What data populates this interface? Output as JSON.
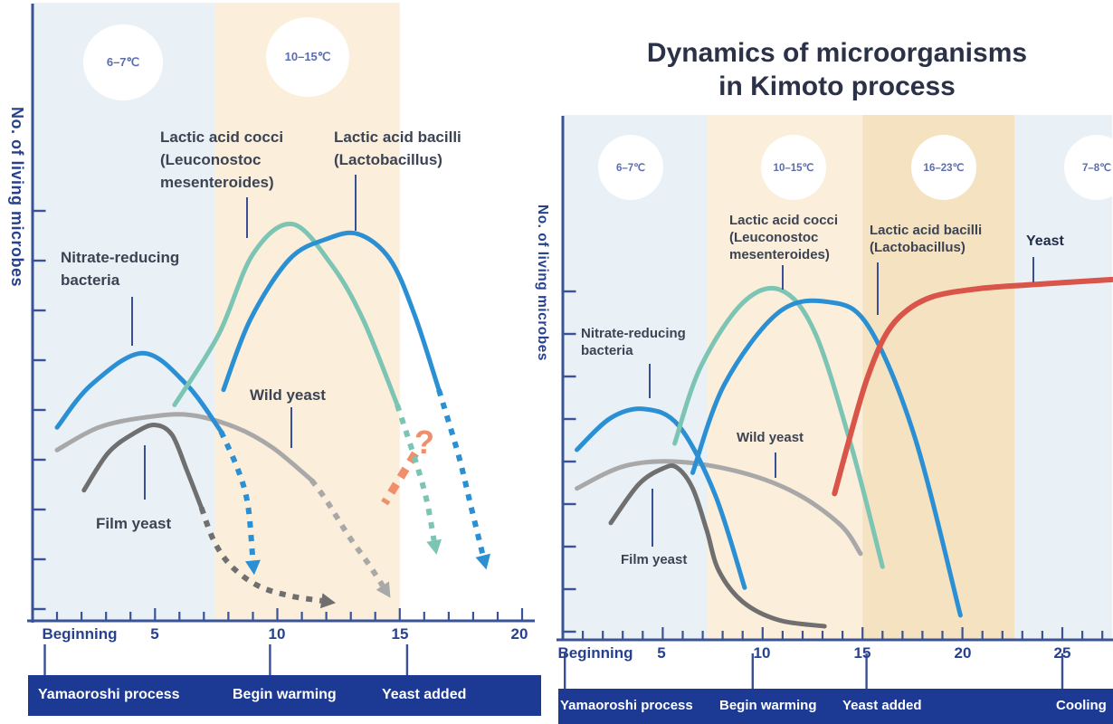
{
  "title": {
    "line1": "Dynamics of microorganisms",
    "line2": "in Kimoto process"
  },
  "colors": {
    "curve_blue": "#2b8fd4",
    "curve_teal": "#7cc4b3",
    "curve_gray_light": "#a8a8a8",
    "curve_gray_dark": "#6f6f6f",
    "curve_red": "#d95449",
    "annotation_orange": "#ef8f6b",
    "axis_navy": "#3a5296",
    "text_navy": "#27418f",
    "title_navy": "#2b3147",
    "label_dark": "#3c4454",
    "zone_blue": "#e9f1f6",
    "zone_peach_light": "#fbeedb",
    "zone_peach_deep": "#f5e2c0",
    "bar_navy": "#1c3a94",
    "connector_navy": "#3a5096",
    "circle_white": "#ffffff",
    "temp_text": "#5b6dac"
  },
  "left_chart": {
    "labels": {
      "nitrate": {
        "line1": "Nitrate-reducing",
        "line2": "bacteria"
      },
      "cocci": {
        "line1": "Lactic acid cocci",
        "line2": "(Leuconostoc",
        "line3": "mesenteroides)"
      },
      "bacilli": {
        "line1": "Lactic acid bacilli",
        "line2": "(Lactobacillus)"
      },
      "wild": "Wild yeast",
      "film": "Film yeast",
      "unknown": "?"
    }
  },
  "right_chart": {
    "labels": {
      "nitrate": {
        "line1": "Nitrate-reducing",
        "line2": "bacteria"
      },
      "cocci": {
        "line1": "Lactic acid cocci",
        "line2": "(Leuconostoc",
        "line3": "mesenteroides)"
      },
      "bacilli": {
        "line1": "Lactic acid bacilli",
        "line2": "(Lactobacillus)"
      },
      "yeast": "Yeast",
      "wild": "Wild yeast",
      "film": "Film yeast"
    }
  },
  "chart_data": [
    {
      "position": "left-panel",
      "type": "line",
      "x_unit": "days",
      "x_range_days": [
        0,
        20.5
      ],
      "ylabel": "No. of living microbes",
      "y_unit": "relative number (axis unlabeled, 0-10 estimated)",
      "grid": false,
      "x_ticks": [
        {
          "label": "Beginning",
          "day": 0
        },
        {
          "label": "5",
          "day": 5
        },
        {
          "label": "10",
          "day": 10
        },
        {
          "label": "15",
          "day": 15
        },
        {
          "label": "20",
          "day": 20
        }
      ],
      "temperature_zones": [
        {
          "temp": "6–7℃",
          "from_day": 0,
          "to_day": 7.45,
          "color": "zone_blue"
        },
        {
          "temp": "10–15℃",
          "from_day": 7.45,
          "to_day": 15,
          "color": "zone_peach_light"
        }
      ],
      "timeline": [
        {
          "label": "Yamaoroshi process",
          "anchor_day": 0.5
        },
        {
          "label": "Begin warming",
          "anchor_day": 9.7
        },
        {
          "label": "Yeast added",
          "anchor_day": 15.3
        }
      ],
      "annotation": {
        "text": "?",
        "color": "annotation_orange"
      },
      "series": [
        {
          "name": "Wild yeast",
          "color": "curve_gray_light",
          "solid": [
            [
              1.0,
              3.4
            ],
            [
              2.7,
              3.85
            ],
            [
              4.6,
              4.05
            ],
            [
              6.4,
              4.1
            ],
            [
              8.3,
              3.85
            ],
            [
              9.8,
              3.45
            ],
            [
              11.4,
              2.8
            ]
          ],
          "dashed": [
            [
              11.4,
              2.8
            ],
            [
              12.0,
              2.4
            ],
            [
              12.9,
              1.7
            ],
            [
              13.7,
              1.15
            ],
            [
              14.3,
              0.7
            ]
          ],
          "arrow": true
        },
        {
          "name": "Film yeast",
          "color": "curve_gray_dark",
          "solid": [
            [
              2.1,
              2.6
            ],
            [
              3.1,
              3.35
            ],
            [
              4.2,
              3.75
            ],
            [
              5.0,
              3.9
            ],
            [
              5.7,
              3.7
            ],
            [
              6.3,
              3.0
            ],
            [
              6.9,
              2.25
            ]
          ],
          "dashed": [
            [
              6.9,
              2.25
            ],
            [
              7.4,
              1.6
            ],
            [
              8.1,
              1.1
            ],
            [
              9.2,
              0.7
            ],
            [
              10.5,
              0.5
            ],
            [
              11.8,
              0.4
            ]
          ],
          "arrow": true
        },
        {
          "name": "Nitrate-reducing bacteria",
          "color": "curve_blue",
          "solid": [
            [
              1.0,
              3.85
            ],
            [
              2.4,
              4.7
            ],
            [
              4.5,
              5.33
            ],
            [
              6.3,
              4.7
            ],
            [
              7.7,
              3.77
            ]
          ],
          "dashed": [
            [
              7.7,
              3.77
            ],
            [
              8.4,
              3.0
            ],
            [
              8.8,
              2.3
            ],
            [
              9.0,
              1.2
            ]
          ],
          "arrow": true
        },
        {
          "name": "Lactic acid cocci (Leuconostoc mesenteroides)",
          "color": "curve_teal",
          "solid": [
            [
              5.8,
              4.3
            ],
            [
              7.6,
              5.7
            ],
            [
              9.0,
              7.3
            ],
            [
              10.6,
              7.9
            ],
            [
              12.2,
              7.1
            ],
            [
              13.5,
              6.0
            ],
            [
              14.9,
              4.3
            ]
          ],
          "dashed": [
            [
              14.9,
              4.3
            ],
            [
              15.7,
              3.1
            ],
            [
              16.1,
              2.4
            ],
            [
              16.4,
              1.6
            ]
          ],
          "arrow": true
        },
        {
          "name": "Lactic acid bacilli (Lactobacillus)",
          "color": "curve_blue",
          "solid": [
            [
              7.8,
              4.6
            ],
            [
              8.9,
              6.0
            ],
            [
              10.5,
              7.2
            ],
            [
              12.0,
              7.6
            ],
            [
              13.3,
              7.7
            ],
            [
              14.6,
              7.2
            ],
            [
              15.6,
              6.1
            ],
            [
              16.6,
              4.6
            ]
          ],
          "dashed": [
            [
              16.6,
              4.6
            ],
            [
              17.4,
              3.3
            ],
            [
              17.9,
              2.3
            ],
            [
              18.4,
              1.3
            ]
          ],
          "arrow": true
        }
      ]
    },
    {
      "position": "right-panel",
      "type": "line",
      "x_unit": "days",
      "x_range_days": [
        0,
        27.5
      ],
      "ylabel": "No. of living microbes",
      "y_unit": "relative number (axis unlabeled, 0-10 estimated)",
      "grid": false,
      "x_ticks": [
        {
          "label": "Beginning",
          "day": 0
        },
        {
          "label": "5",
          "day": 5
        },
        {
          "label": "10",
          "day": 10
        },
        {
          "label": "15",
          "day": 15
        },
        {
          "label": "20",
          "day": 20
        },
        {
          "label": "25",
          "day": 25
        }
      ],
      "temperature_zones": [
        {
          "temp": "6–7℃",
          "from_day": 0,
          "to_day": 7.25,
          "color": "zone_blue"
        },
        {
          "temp": "10–15℃",
          "from_day": 7.25,
          "to_day": 15,
          "color": "zone_peach_light"
        },
        {
          "temp": "16–23℃",
          "from_day": 15,
          "to_day": 22.6,
          "color": "zone_peach_deep"
        },
        {
          "temp": "7–8℃",
          "from_day": 22.6,
          "to_day": 27.5,
          "color": "zone_blue"
        }
      ],
      "timeline": [
        {
          "label": "Yamaoroshi process",
          "anchor_day": 0.1
        },
        {
          "label": "Begin warming",
          "anchor_day": 9.5
        },
        {
          "label": "Yeast added",
          "anchor_day": 15.2
        },
        {
          "label": "Cooling",
          "anchor_day": 25.0
        }
      ],
      "series": [
        {
          "name": "Wild yeast",
          "color": "curve_gray_light",
          "solid": [
            [
              0.7,
              2.9
            ],
            [
              3.1,
              3.33
            ],
            [
              5.8,
              3.41
            ],
            [
              9.0,
              3.2
            ],
            [
              11.7,
              2.8
            ],
            [
              13.9,
              2.2
            ],
            [
              14.9,
              1.65
            ]
          ]
        },
        {
          "name": "Film yeast",
          "color": "curve_gray_dark",
          "solid": [
            [
              2.4,
              2.24
            ],
            [
              3.8,
              2.98
            ],
            [
              5.0,
              3.28
            ],
            [
              5.7,
              3.3
            ],
            [
              6.5,
              2.9
            ],
            [
              7.2,
              2.1
            ],
            [
              7.8,
              1.33
            ],
            [
              9.0,
              0.73
            ],
            [
              10.8,
              0.38
            ],
            [
              13.1,
              0.26
            ]
          ]
        },
        {
          "name": "Nitrate-reducing bacteria",
          "color": "curve_blue",
          "solid": [
            [
              0.7,
              3.64
            ],
            [
              2.4,
              4.25
            ],
            [
              4.1,
              4.42
            ],
            [
              5.8,
              4.1
            ],
            [
              7.6,
              2.8
            ],
            [
              9.1,
              1.0
            ]
          ]
        },
        {
          "name": "Lactic acid cocci (Leuconostoc mesenteroides)",
          "color": "curve_teal",
          "solid": [
            [
              5.6,
              3.76
            ],
            [
              6.9,
              5.23
            ],
            [
              9.0,
              6.45
            ],
            [
              10.9,
              6.7
            ],
            [
              12.6,
              5.9
            ],
            [
              14.4,
              3.76
            ],
            [
              16.0,
              1.4
            ]
          ]
        },
        {
          "name": "Lactic acid bacilli (Lactobacillus)",
          "color": "curve_blue",
          "solid": [
            [
              6.5,
              3.2
            ],
            [
              8.1,
              4.9
            ],
            [
              10.8,
              6.27
            ],
            [
              13.3,
              6.47
            ],
            [
              15.3,
              6.0
            ],
            [
              17.6,
              3.9
            ],
            [
              19.9,
              0.47
            ]
          ]
        },
        {
          "name": "Yeast",
          "color": "curve_red",
          "thick": true,
          "solid": [
            [
              13.6,
              2.8
            ],
            [
              14.4,
              3.93
            ],
            [
              15.2,
              4.97
            ],
            [
              16.1,
              5.8
            ],
            [
              17.1,
              6.27
            ],
            [
              18.5,
              6.57
            ],
            [
              20.7,
              6.72
            ],
            [
              23.4,
              6.8
            ],
            [
              27.5,
              6.9
            ]
          ]
        }
      ]
    }
  ]
}
